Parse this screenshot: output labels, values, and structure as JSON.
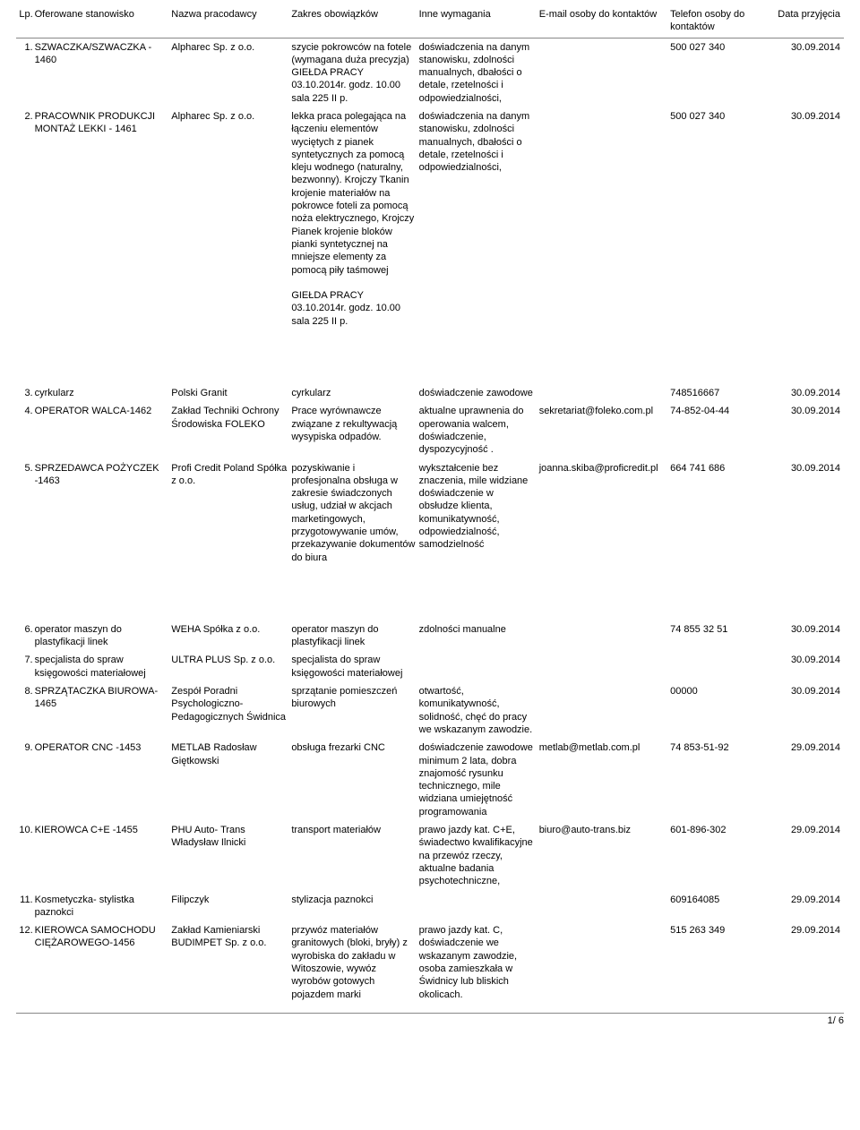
{
  "headers": {
    "lp": "Lp.",
    "position": "Oferowane stanowisko",
    "employer": "Nazwa pracodawcy",
    "duties": "Zakres obowiązków",
    "requirements": "Inne wymagania",
    "email": "E-mail osoby do kontaktów",
    "phone": "Telefon osoby do kontaktów",
    "date": "Data przyjęcia"
  },
  "rows": [
    {
      "lp": "1.",
      "position": "SZWACZKA/SZWACZKA - 1460",
      "employer": "Alpharec Sp. z o.o.",
      "duties": "szycie pokrowców na fotele (wymagana duża precyzja)\nGIEŁDA PRACY 03.10.2014r. godz. 10.00 sala 225 II p.",
      "requirements": "doświadczenia na danym stanowisku, zdolności manualnych, dbałości o detale, rzetelności i odpowiedzialności,",
      "email": "",
      "phone": "500 027 340",
      "date": "30.09.2014"
    },
    {
      "lp": "2.",
      "position": "PRACOWNIK PRODUKCJI MONTAŻ LEKKI - 1461",
      "employer": "Alpharec Sp. z o.o.",
      "duties": "lekka praca polegająca na łączeniu elementów wyciętych z pianek syntetycznych za pomocą kleju wodnego (naturalny, bezwonny). Krojczy Tkanin krojenie materiałów na pokrowce foteli za pomocą noża elektrycznego, Krojczy Pianek krojenie bloków pianki syntetycznej na mniejsze elementy za pomocą piły taśmowej\n\nGIEŁDA PRACY 03.10.2014r. godz. 10.00 sala 225 II p.",
      "requirements": "doświadczenia na danym stanowisku, zdolności manualnych, dbałości o detale, rzetelności i odpowiedzialności,",
      "email": "",
      "phone": "500 027 340",
      "date": "30.09.2014"
    },
    {
      "lp": "3.",
      "position": "cyrkularz",
      "employer": "Polski Granit",
      "duties": "cyrkularz",
      "requirements": "doświadczenie zawodowe",
      "email": "",
      "phone": "748516667",
      "date": "30.09.2014"
    },
    {
      "lp": "4.",
      "position": "OPERATOR WALCA-1462",
      "employer": "Zakład Techniki Ochrony Środowiska FOLEKO",
      "duties": "Prace wyrównawcze związane z rekultywacją wysypiska odpadów.",
      "requirements": "aktualne uprawnenia do operowania walcem, doświadczenie, dyspozycyjność .",
      "email": "sekretariat@foleko.com.pl",
      "phone": "74-852-04-44",
      "date": "30.09.2014"
    },
    {
      "lp": "5.",
      "position": "SPRZEDAWCA POŻYCZEK -1463",
      "employer": "Profi Credit Poland Spółka z o.o.",
      "duties": "pozyskiwanie i profesjonalna obsługa w zakresie świadczonych usług, udział w akcjach marketingowych, przygotowywanie umów, przekazywanie dokumentów do biura",
      "requirements": "wykształcenie bez znaczenia, mile widziane doświadczenie w obsłudze klienta, komunikatywność, odpowiedzialność, samodzielność",
      "email": "joanna.skiba@proficredit.pl",
      "phone": "664 741 686",
      "date": "30.09.2014"
    },
    {
      "lp": "6.",
      "position": "operator maszyn do plastyfikacji linek",
      "employer": "WEHA Spółka z o.o.",
      "duties": "operator maszyn do plastyfikacji linek",
      "requirements": "zdolności manualne",
      "email": "",
      "phone": "74 855 32 51",
      "date": "30.09.2014"
    },
    {
      "lp": "7.",
      "position": "specjalista do spraw księgowości materiałowej",
      "employer": "ULTRA PLUS Sp. z o.o.",
      "duties": "specjalista do spraw księgowości materiałowej",
      "requirements": "",
      "email": "",
      "phone": "",
      "date": "30.09.2014"
    },
    {
      "lp": "8.",
      "position": "SPRZĄTACZKA BIUROWA-1465",
      "employer": "Zespół Poradni Psychologiczno-Pedagogicznych Świdnica",
      "duties": "sprzątanie pomieszczeń biurowych",
      "requirements": "otwartość, komunikatywność, solidność, chęć do pracy we wskazanym zawodzie.",
      "email": "",
      "phone": "00000",
      "date": "30.09.2014"
    },
    {
      "lp": "9.",
      "position": "OPERATOR CNC -1453",
      "employer": "METLAB Radosław Giętkowski",
      "duties": "obsługa frezarki CNC",
      "requirements": "doświadczenie zawodowe minimum 2 lata, dobra znajomość rysunku technicznego, mile widziana umiejętność programowania",
      "email": "metlab@metlab.com.pl",
      "phone": "74 853-51-92",
      "date": "29.09.2014"
    },
    {
      "lp": "10.",
      "position": "KIEROWCA C+E -1455",
      "employer": "PHU Auto- Trans Władysław Ilnicki",
      "duties": "transport materiałów",
      "requirements": "prawo jazdy kat. C+E, świadectwo kwalifikacyjne na przewóz rzeczy, aktualne badania psychotechniczne,",
      "email": "biuro@auto-trans.biz",
      "phone": "601-896-302",
      "date": "29.09.2014"
    },
    {
      "lp": "11.",
      "position": "Kosmetyczka- stylistka paznokci",
      "employer": "Filipczyk",
      "duties": "stylizacja paznokci",
      "requirements": "",
      "email": "",
      "phone": "609164085",
      "date": "29.09.2014"
    },
    {
      "lp": "12.",
      "position": "KIEROWCA SAMOCHODU CIĘŻAROWEGO-1456",
      "employer": "Zakład Kamieniarski BUDIMPET Sp. z o.o.",
      "duties": "przywóz materiałów granitowych (bloki, bryły) z wyrobiska do zakładu w Witoszowie, wywóz wyrobów gotowych pojazdem marki",
      "requirements": "prawo jazdy kat. C, doświadczenie we wskazanym zawodzie, osoba zamieszkała w Świdnicy lub bliskich okolicach.",
      "email": "",
      "phone": "515 263 349",
      "date": "29.09.2014"
    }
  ],
  "gaps_after": [
    1,
    4
  ],
  "page_indicator": "1/ 6"
}
